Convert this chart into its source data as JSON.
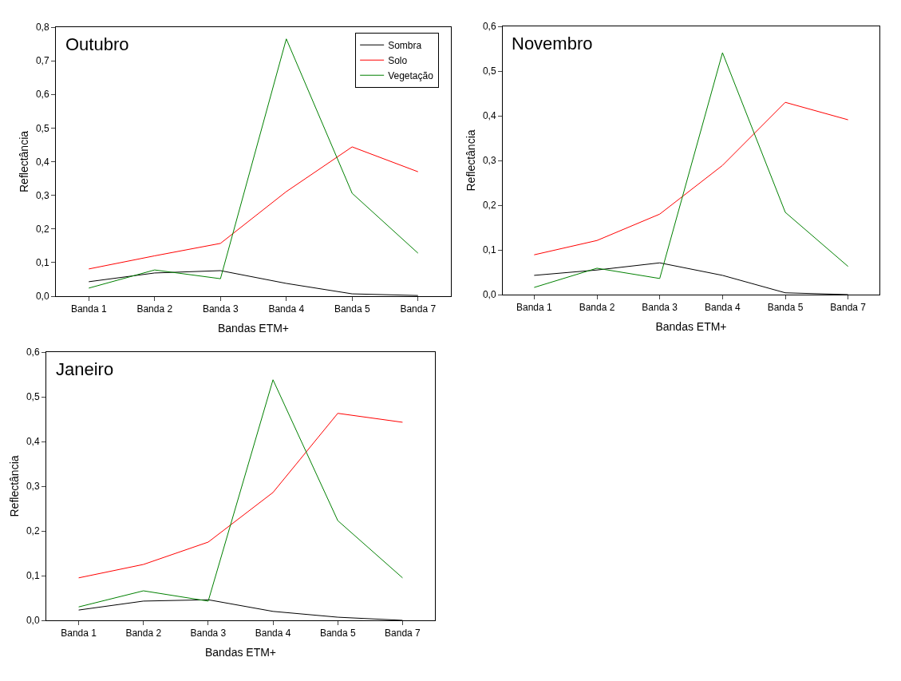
{
  "chart_data": [
    {
      "type": "line",
      "title": "Outubro",
      "xlabel": "Bandas ETM+",
      "ylabel": "Reflectância",
      "categories": [
        "Banda 1",
        "Banda 2",
        "Banda 3",
        "Banda 4",
        "Banda 5",
        "Banda 7"
      ],
      "ylim": [
        0,
        0.8
      ],
      "yticks": [
        {
          "value": 0,
          "label": "0,0"
        },
        {
          "value": 0.1,
          "label": "0,1"
        },
        {
          "value": 0.2,
          "label": "0,2"
        },
        {
          "value": 0.3,
          "label": "0,3"
        },
        {
          "value": 0.4,
          "label": "0,4"
        },
        {
          "value": 0.5,
          "label": "0,5"
        },
        {
          "value": 0.6,
          "label": "0,6"
        },
        {
          "value": 0.7,
          "label": "0,7"
        },
        {
          "value": 0.8,
          "label": "0,8"
        }
      ],
      "legend": "top right",
      "marker": "none",
      "line_style": "solid",
      "series": [
        {
          "name": "Sombra",
          "color": "#000000",
          "values": [
            0.043,
            0.069,
            0.076,
            0.038,
            0.007,
            0.002
          ]
        },
        {
          "name": "Solo",
          "color": "#ff0000",
          "values": [
            0.081,
            0.12,
            0.157,
            0.311,
            0.444,
            0.37
          ]
        },
        {
          "name": "Vegetação",
          "color": "#008000",
          "values": [
            0.024,
            0.078,
            0.052,
            0.765,
            0.306,
            0.128
          ]
        }
      ]
    },
    {
      "type": "line",
      "title": "Novembro",
      "xlabel": "Bandas ETM+",
      "ylabel": "Reflectância",
      "categories": [
        "Banda 1",
        "Banda 2",
        "Banda 3",
        "Banda 4",
        "Banda 5",
        "Banda 7"
      ],
      "ylim": [
        0,
        0.6
      ],
      "yticks": [
        {
          "value": 0,
          "label": "0,0"
        },
        {
          "value": 0.1,
          "label": "0,1"
        },
        {
          "value": 0.2,
          "label": "0,2"
        },
        {
          "value": 0.3,
          "label": "0,3"
        },
        {
          "value": 0.4,
          "label": "0,4"
        },
        {
          "value": 0.5,
          "label": "0,5"
        },
        {
          "value": 0.6,
          "label": "0,6"
        }
      ],
      "marker": "none",
      "line_style": "solid",
      "series": [
        {
          "color": "#000000",
          "values": [
            0.043,
            0.055,
            0.071,
            0.043,
            0.004,
            0
          ]
        },
        {
          "color": "#ff0000",
          "values": [
            0.089,
            0.121,
            0.18,
            0.289,
            0.43,
            0.391
          ]
        },
        {
          "color": "#008000",
          "values": [
            0.016,
            0.059,
            0.036,
            0.541,
            0.184,
            0.063
          ]
        }
      ]
    },
    {
      "type": "line",
      "title": "Janeiro",
      "xlabel": "Bandas ETM+",
      "ylabel": "Reflectância",
      "categories": [
        "Banda 1",
        "Banda 2",
        "Banda 3",
        "Banda 4",
        "Banda 5",
        "Banda 7"
      ],
      "ylim": [
        0,
        0.6
      ],
      "yticks": [
        {
          "value": 0,
          "label": "0,0"
        },
        {
          "value": 0.1,
          "label": "0,1"
        },
        {
          "value": 0.2,
          "label": "0,2"
        },
        {
          "value": 0.3,
          "label": "0,3"
        },
        {
          "value": 0.4,
          "label": "0,4"
        },
        {
          "value": 0.5,
          "label": "0,5"
        },
        {
          "value": 0.6,
          "label": "0,6"
        }
      ],
      "marker": "none",
      "line_style": "solid",
      "series": [
        {
          "color": "#000000",
          "values": [
            0.023,
            0.043,
            0.046,
            0.02,
            0.007,
            0
          ]
        },
        {
          "color": "#ff0000",
          "values": [
            0.095,
            0.125,
            0.175,
            0.286,
            0.463,
            0.443
          ]
        },
        {
          "color": "#008000",
          "values": [
            0.03,
            0.066,
            0.043,
            0.538,
            0.223,
            0.095
          ]
        }
      ]
    }
  ]
}
